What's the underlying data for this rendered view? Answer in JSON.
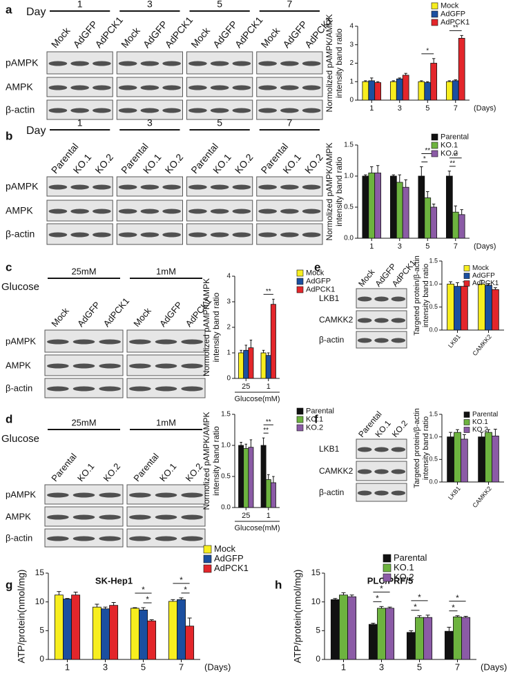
{
  "panel_labels": [
    "a",
    "b",
    "c",
    "d",
    "e",
    "f",
    "g",
    "h"
  ],
  "blots": [
    {
      "header": "Day",
      "groups": [
        "1",
        "3",
        "5",
        "7"
      ],
      "lanes": [
        "Mock",
        "AdGFP",
        "AdPCK1"
      ],
      "rows": [
        "pAMPK",
        "AMPK",
        "β-actin"
      ]
    },
    {
      "header": "Day",
      "groups": [
        "1",
        "3",
        "5",
        "7"
      ],
      "lanes": [
        "Parental",
        "KO.1",
        "KO.2"
      ],
      "rows": [
        "pAMPK",
        "AMPK",
        "β-actin"
      ]
    },
    {
      "header": "Glucose",
      "groups": [
        "25mM",
        "1mM"
      ],
      "lanes": [
        "Mock",
        "AdGFP",
        "AdPCK1"
      ],
      "rows": [
        "pAMPK",
        "AMPK",
        "β-actin"
      ]
    },
    {
      "header": "Glucose",
      "groups": [
        "25mM",
        "1mM"
      ],
      "lanes": [
        "Parental",
        "KO.1",
        "KO.2"
      ],
      "rows": [
        "pAMPK",
        "AMPK",
        "β-actin"
      ]
    },
    {
      "lanes": [
        "Mock",
        "AdGFP",
        "AdPCK1"
      ],
      "rows": [
        "LKB1",
        "CAMKK2",
        "β-actin"
      ]
    },
    {
      "lanes": [
        "Parental",
        "KO.1",
        "KO.2"
      ],
      "rows": [
        "LKB1",
        "CAMKK2",
        "β-actin"
      ]
    }
  ],
  "chart_data": [
    {
      "type": "bar",
      "ylabel": [
        "Normolized pAMPK/AMPK",
        "intensity band ratio"
      ],
      "xlabel": "(Days)",
      "categories": [
        "1",
        "3",
        "5",
        "7"
      ],
      "ylim": [
        0,
        4
      ],
      "yticks": [
        0,
        1,
        2,
        3,
        4
      ],
      "series": [
        {
          "name": "Mock",
          "color": "#f7ee1f",
          "values": [
            1,
            1,
            1,
            1
          ],
          "errors": [
            0.05,
            0.05,
            0.05,
            0.05
          ]
        },
        {
          "name": "AdGFP",
          "color": "#1b4fa0",
          "values": [
            1.05,
            1.15,
            0.95,
            1.05
          ],
          "errors": [
            0.15,
            0.05,
            0.05,
            0.05
          ]
        },
        {
          "name": "AdPCK1",
          "color": "#e3262b",
          "values": [
            0.95,
            1.35,
            2.0,
            3.35
          ],
          "errors": [
            0.05,
            0.1,
            0.25,
            0.15
          ]
        }
      ],
      "annotations": [
        {
          "text": "*",
          "category": "5",
          "series": [
            "Mock",
            "AdPCK1"
          ]
        },
        {
          "text": "**",
          "category": "7",
          "series": [
            "Mock",
            "AdPCK1"
          ]
        }
      ]
    },
    {
      "type": "bar",
      "ylabel": [
        "Normolized pAMPK/AMPK",
        "intensity band ratio"
      ],
      "xlabel": "(Days)",
      "categories": [
        "1",
        "3",
        "5",
        "7"
      ],
      "ylim": [
        0,
        1.5
      ],
      "yticks": [
        {
          "value": 0,
          "label": "0.0"
        },
        0.5,
        {
          "value": 1,
          "label": "1.0"
        },
        1.5
      ],
      "series": [
        {
          "name": "Parental",
          "color": "#111111",
          "values": [
            1,
            1,
            1,
            1
          ],
          "errors": [
            0.02,
            0.02,
            0.15,
            0.08
          ]
        },
        {
          "name": "KO.1",
          "color": "#6db33f",
          "values": [
            1.05,
            0.9,
            0.65,
            0.42
          ],
          "errors": [
            0.1,
            0.12,
            0.1,
            0.1
          ]
        },
        {
          "name": "KO.2",
          "color": "#8b5ba6",
          "values": [
            1.05,
            0.82,
            0.5,
            0.38
          ],
          "errors": [
            0.12,
            0.12,
            0.05,
            0.08
          ]
        }
      ],
      "annotations": [
        {
          "text": "*",
          "category": "5",
          "series": [
            "Parental",
            "KO.1"
          ]
        },
        {
          "text": "**",
          "category": "5",
          "series": [
            "Parental",
            "KO.2"
          ]
        },
        {
          "text": "**",
          "category": "7",
          "series": [
            "Parental",
            "KO.1"
          ]
        },
        {
          "text": "**",
          "category": "7",
          "series": [
            "Parental",
            "KO.2"
          ]
        }
      ]
    },
    {
      "type": "bar",
      "ylabel": [
        "Normolized pAMPK/AMPK",
        "intensity band ratio"
      ],
      "xlabel": "Glucose(mM)",
      "categories": [
        "25",
        "1"
      ],
      "ylim": [
        0,
        4
      ],
      "yticks": [
        0,
        1,
        2,
        3,
        4
      ],
      "series": [
        {
          "name": "Mock",
          "color": "#f7ee1f",
          "values": [
            1,
            1
          ],
          "errors": [
            0.1,
            0.1
          ]
        },
        {
          "name": "AdGFP",
          "color": "#1b4fa0",
          "values": [
            1.1,
            0.9
          ],
          "errors": [
            0.2,
            0.1
          ]
        },
        {
          "name": "AdPCK1",
          "color": "#e3262b",
          "values": [
            1.2,
            2.9
          ],
          "errors": [
            0.3,
            0.2
          ]
        }
      ],
      "annotations": [
        {
          "text": "**",
          "category": "1",
          "series": [
            "Mock",
            "AdPCK1"
          ]
        }
      ]
    },
    {
      "type": "bar",
      "ylabel": [
        "Normolized pAMPK/AMPK",
        "intensity band ratio"
      ],
      "xlabel": "Glucose(mM)",
      "categories": [
        "25",
        "1"
      ],
      "ylim": [
        0,
        1.5
      ],
      "yticks": [
        {
          "value": 0,
          "label": "0.0"
        },
        0.5,
        {
          "value": 1,
          "label": "1.0"
        },
        1.5
      ],
      "series": [
        {
          "name": "Parental",
          "color": "#111111",
          "values": [
            1,
            1
          ],
          "errors": [
            0.05,
            0.12
          ]
        },
        {
          "name": "KO.1",
          "color": "#6db33f",
          "values": [
            0.95,
            0.45
          ],
          "errors": [
            0.07,
            0.08
          ]
        },
        {
          "name": "KO.2",
          "color": "#8b5ba6",
          "values": [
            0.97,
            0.4
          ],
          "errors": [
            0.12,
            0.1
          ]
        }
      ],
      "annotations": [
        {
          "text": "**",
          "category": "1",
          "series": [
            "Parental",
            "KO.1"
          ]
        },
        {
          "text": "**",
          "category": "1",
          "series": [
            "Parental",
            "KO.2"
          ]
        }
      ]
    },
    {
      "type": "bar",
      "ylabel": [
        "Targeted protein/β-actin",
        "intensity band ratio"
      ],
      "categories": [
        "LKB1",
        "CAMKK2"
      ],
      "ylim": [
        0,
        1.5
      ],
      "yticks": [
        {
          "value": 0,
          "label": "0.0"
        },
        0.5,
        {
          "value": 1,
          "label": "1.0"
        },
        1.5
      ],
      "series": [
        {
          "name": "Mock",
          "color": "#f7ee1f",
          "values": [
            1,
            1
          ],
          "errors": [
            0.05,
            0.08
          ]
        },
        {
          "name": "AdGFP",
          "color": "#1b4fa0",
          "values": [
            0.95,
            0.97
          ],
          "errors": [
            0.08,
            0.04
          ]
        },
        {
          "name": "AdPCK1",
          "color": "#e3262b",
          "values": [
            0.95,
            0.88
          ],
          "errors": [
            0.1,
            0.04
          ]
        }
      ]
    },
    {
      "type": "bar",
      "ylabel": [
        "Targeted protein/β-actin",
        "intensity band ratio"
      ],
      "categories": [
        "LKB1",
        "CAMKK2"
      ],
      "ylim": [
        0,
        1.5
      ],
      "yticks": [
        {
          "value": 0,
          "label": "0.0"
        },
        0.5,
        {
          "value": 1,
          "label": "1.0"
        },
        1.5
      ],
      "series": [
        {
          "name": "Parental",
          "color": "#111111",
          "values": [
            1,
            1
          ],
          "errors": [
            0.1,
            0.1
          ]
        },
        {
          "name": "KO.1",
          "color": "#6db33f",
          "values": [
            1.1,
            1.1
          ],
          "errors": [
            0.06,
            0.06
          ]
        },
        {
          "name": "KO.2",
          "color": "#8b5ba6",
          "values": [
            0.95,
            1.02
          ],
          "errors": [
            0.1,
            0.15
          ]
        }
      ]
    },
    {
      "type": "bar",
      "title": "SK-Hep1",
      "ylabel": [
        "ATP/protein(nmol/mg)"
      ],
      "xlabel": "(Days)",
      "categories": [
        "1",
        "3",
        "5",
        "7"
      ],
      "ylim": [
        0,
        15
      ],
      "yticks": [
        0,
        5,
        10,
        15
      ],
      "series": [
        {
          "name": "Mock",
          "color": "#f7ee1f",
          "values": [
            11.2,
            9.1,
            8.9,
            10.1
          ],
          "errors": [
            0.6,
            0.5,
            0.1,
            0.3
          ]
        },
        {
          "name": "AdGFP",
          "color": "#1b4fa0",
          "values": [
            10.5,
            8.8,
            8.6,
            10.4
          ],
          "errors": [
            0.1,
            0.3,
            0.4,
            0.3
          ]
        },
        {
          "name": "AdPCK1",
          "color": "#e3262b",
          "values": [
            11.2,
            9.4,
            6.7,
            5.8
          ],
          "errors": [
            0.5,
            0.5,
            0.2,
            1.4
          ]
        }
      ],
      "annotations": [
        {
          "text": "*",
          "category": "5",
          "series": [
            "AdGFP",
            "AdPCK1"
          ]
        },
        {
          "text": "*",
          "category": "5",
          "series": [
            "Mock",
            "AdPCK1"
          ]
        },
        {
          "text": "*",
          "category": "7",
          "series": [
            "AdGFP",
            "AdPCK1"
          ]
        },
        {
          "text": "*",
          "category": "7",
          "series": [
            "Mock",
            "AdPCK1"
          ]
        }
      ]
    },
    {
      "type": "bar",
      "title": "PLC/PRF/5",
      "ylabel": [
        "ATP/protein(nmol/mg)"
      ],
      "xlabel": "(Days)",
      "categories": [
        "1",
        "3",
        "5",
        "7"
      ],
      "ylim": [
        0,
        15
      ],
      "yticks": [
        0,
        5,
        10,
        15
      ],
      "series": [
        {
          "name": "Parental",
          "color": "#111111",
          "values": [
            10.4,
            6.1,
            4.7,
            4.9
          ],
          "errors": [
            0.2,
            0.2,
            0.3,
            0.7
          ]
        },
        {
          "name": "KO.1",
          "color": "#6db33f",
          "values": [
            11.2,
            8.9,
            7.3,
            7.4
          ],
          "errors": [
            0.4,
            0.3,
            0.3,
            0.2
          ]
        },
        {
          "name": "KO.2",
          "color": "#8b5ba6",
          "values": [
            10.9,
            8.9,
            7.3,
            7.3
          ],
          "errors": [
            0.3,
            0.2,
            0.4,
            0.2
          ]
        }
      ],
      "annotations": [
        {
          "text": "*",
          "category": "3",
          "series": [
            "Parental",
            "KO.1"
          ]
        },
        {
          "text": "*",
          "category": "3",
          "series": [
            "Parental",
            "KO.2"
          ]
        },
        {
          "text": "*",
          "category": "5",
          "series": [
            "Parental",
            "KO.1"
          ]
        },
        {
          "text": "*",
          "category": "5",
          "series": [
            "Parental",
            "KO.2"
          ]
        },
        {
          "text": "*",
          "category": "7",
          "series": [
            "Parental",
            "KO.1"
          ]
        },
        {
          "text": "*",
          "category": "7",
          "series": [
            "Parental",
            "KO.2"
          ]
        }
      ]
    }
  ]
}
